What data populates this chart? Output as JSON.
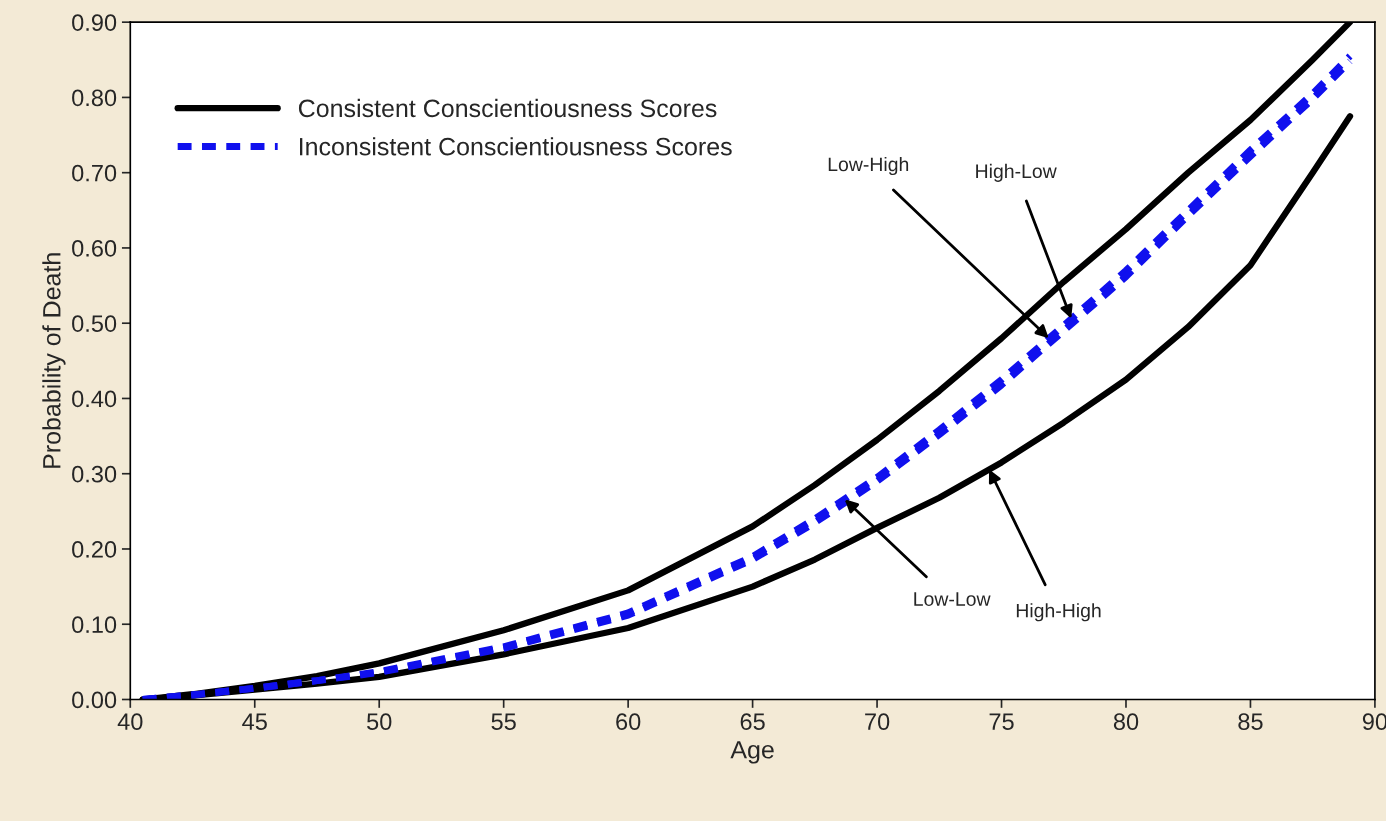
{
  "chart_data": {
    "type": "line",
    "xlabel": "Age",
    "ylabel": "Probability of Death",
    "x": [
      40.5,
      42.5,
      45,
      47.5,
      50,
      55,
      60,
      65,
      67.5,
      70,
      72.5,
      75,
      77.5,
      80,
      82.5,
      85,
      87.5,
      89
    ],
    "series": [
      {
        "name": "Consistent Conscientiousness Scores",
        "color": "#000000",
        "line_style": "solid",
        "values": [
          0,
          0.007,
          0.018,
          0.031,
          0.048,
          0.092,
          0.145,
          0.23,
          0.285,
          0.345,
          0.41,
          0.48,
          0.555,
          0.625,
          0.7,
          0.77,
          0.85,
          0.9
        ]
      },
      {
        "color": "#000000",
        "line_style": "solid",
        "values": [
          0,
          0.005,
          0.013,
          0.021,
          0.03,
          0.06,
          0.095,
          0.15,
          0.186,
          0.228,
          0.268,
          0.315,
          0.368,
          0.425,
          0.495,
          0.577,
          0.7,
          0.775
        ]
      },
      {
        "name": "Inconsistent Conscientiousness Scores",
        "color": "#1010ee",
        "line_style": "dashed",
        "values": [
          0,
          0.006,
          0.015,
          0.025,
          0.037,
          0.07,
          0.115,
          0.19,
          0.24,
          0.295,
          0.358,
          0.425,
          0.497,
          0.57,
          0.65,
          0.73,
          0.805,
          0.855
        ]
      },
      {
        "color": "#1010ee",
        "line_style": "dashed",
        "values": [
          0,
          0.006,
          0.015,
          0.025,
          0.036,
          0.068,
          0.112,
          0.186,
          0.235,
          0.29,
          0.352,
          0.418,
          0.49,
          0.562,
          0.643,
          0.722,
          0.798,
          0.848
        ]
      }
    ],
    "xlim": [
      40,
      90
    ],
    "xticks": [
      40,
      45,
      50,
      55,
      60,
      65,
      70,
      75,
      80,
      85,
      90
    ],
    "ylim": [
      0,
      0.9
    ],
    "yticks": [
      {
        "value": 0,
        "label": "0.00"
      },
      {
        "value": 0.1,
        "label": "0.10"
      },
      {
        "value": 0.2,
        "label": "0.20"
      },
      {
        "value": 0.3,
        "label": "0.30"
      },
      {
        "value": 0.4,
        "label": "0.40"
      },
      {
        "value": 0.5,
        "label": "0.50"
      },
      {
        "value": 0.6,
        "label": "0.60"
      },
      {
        "value": 0.7,
        "label": "0.70"
      },
      {
        "value": 0.8,
        "label": "0.80"
      },
      {
        "value": 0.9,
        "label": "0.90"
      }
    ],
    "annotations": [
      {
        "text": "Low-High",
        "x": 76.9,
        "y": 0.48
      },
      {
        "text": "High-Low",
        "x": 77.8,
        "y": 0.506
      },
      {
        "text": "Low-Low",
        "x": 68.7,
        "y": 0.266
      },
      {
        "text": "High-High",
        "x": 74.5,
        "y": 0.306
      }
    ],
    "grid": false,
    "legend": "top left"
  }
}
